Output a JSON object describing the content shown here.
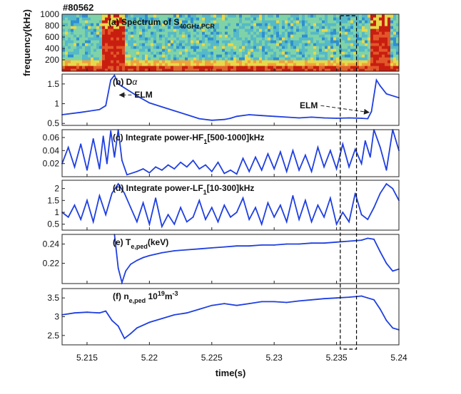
{
  "figure": {
    "shot_label": "#80562",
    "xlabel": "time(s)",
    "xlim": [
      5.213,
      5.24
    ],
    "x_ticks": [
      5.215,
      5.22,
      5.225,
      5.23,
      5.235,
      5.24
    ],
    "x_tick_labels": [
      "5.215",
      "5.22",
      "5.225",
      "5.23",
      "5.235",
      "5.24"
    ],
    "highlight_window": [
      5.2353,
      5.2366
    ],
    "line_color": "#1f3fe0",
    "dash_color": "#000000"
  },
  "chart_data": [
    {
      "type": "heatmap",
      "id": "a",
      "title_main": "(a) Spectrum of S",
      "title_sub": "40GHz,PCR",
      "ylabel": "frequency(kHz)",
      "ylim": [
        0,
        1000
      ],
      "y_ticks": [
        200,
        400,
        600,
        800,
        1000
      ],
      "y_tick_labels": [
        "200",
        "400",
        "600",
        "800",
        "1000"
      ],
      "colors": {
        "low": "#2f8fd0",
        "mid": "#7fd3a8",
        "high": "#e8d84a",
        "peak": "#c81e10"
      },
      "bursts": [
        {
          "x_start": 5.2162,
          "x_end": 5.218,
          "f_max": 1000
        },
        {
          "x_start": 5.2378,
          "x_end": 5.2392,
          "f_max": 1000
        }
      ]
    },
    {
      "type": "line",
      "id": "b",
      "title_main": "(b) D",
      "title_greek": "α",
      "ylim": [
        0.45,
        1.75
      ],
      "y_ticks": [
        0.5,
        1,
        1.5
      ],
      "y_tick_labels": [
        "0.5",
        "1",
        "1.5"
      ],
      "annotations": [
        {
          "text": "ELM",
          "x": 5.2188,
          "y": 1.15,
          "arrow_to_x": 5.2176,
          "arrow_to_y": 1.22
        },
        {
          "text": "ELM",
          "x": 5.2335,
          "y": 0.88,
          "arrow_to_x": 5.2376,
          "arrow_to_y": 0.78
        }
      ],
      "series": [
        {
          "x": [
            5.213,
            5.2145,
            5.216,
            5.2165,
            5.2169,
            5.2172,
            5.2175,
            5.218,
            5.2185,
            5.219,
            5.22,
            5.221,
            5.222,
            5.223,
            5.224,
            5.225,
            5.226,
            5.2265,
            5.227,
            5.228,
            5.229,
            5.23,
            5.231,
            5.232,
            5.233,
            5.234,
            5.235,
            5.236,
            5.237,
            5.2375,
            5.2378,
            5.2382,
            5.2385,
            5.239,
            5.24
          ],
          "values": [
            0.72,
            0.78,
            0.85,
            0.95,
            1.6,
            1.72,
            1.5,
            1.4,
            1.3,
            1.2,
            1.02,
            0.92,
            0.82,
            0.72,
            0.62,
            0.58,
            0.6,
            0.63,
            0.68,
            0.72,
            0.7,
            0.68,
            0.66,
            0.64,
            0.66,
            0.64,
            0.63,
            0.64,
            0.63,
            0.62,
            0.8,
            1.6,
            1.45,
            1.25,
            1.15
          ]
        }
      ]
    },
    {
      "type": "line",
      "id": "c",
      "title_main": "(c) Integrate power-HF",
      "title_sub": "1",
      "title_rest": "[500-1000]kHz",
      "ylim": [
        0,
        0.072
      ],
      "y_ticks": [
        0.02,
        0.04,
        0.06
      ],
      "y_tick_labels": [
        "0.02",
        "0.04",
        "0.06"
      ],
      "series": [
        {
          "x": [
            5.213,
            5.2135,
            5.214,
            5.2145,
            5.215,
            5.2155,
            5.216,
            5.2163,
            5.2166,
            5.2169,
            5.2172,
            5.2175,
            5.2178,
            5.2182,
            5.219,
            5.2195,
            5.22,
            5.2205,
            5.221,
            5.2215,
            5.222,
            5.2225,
            5.223,
            5.2235,
            5.224,
            5.2245,
            5.225,
            5.2255,
            5.226,
            5.2265,
            5.227,
            5.2275,
            5.228,
            5.2285,
            5.229,
            5.2295,
            5.23,
            5.2305,
            5.231,
            5.2315,
            5.232,
            5.2325,
            5.233,
            5.2335,
            5.234,
            5.2345,
            5.235,
            5.2355,
            5.236,
            5.2365,
            5.237,
            5.2373,
            5.2377,
            5.238,
            5.2385,
            5.239,
            5.2395,
            5.24
          ],
          "values": [
            0.02,
            0.045,
            0.015,
            0.05,
            0.01,
            0.058,
            0.012,
            0.062,
            0.02,
            0.07,
            0.03,
            0.072,
            0.025,
            0.003,
            0.008,
            0.012,
            0.006,
            0.015,
            0.01,
            0.018,
            0.012,
            0.022,
            0.015,
            0.025,
            0.012,
            0.018,
            0.008,
            0.022,
            0.005,
            0.01,
            0.004,
            0.028,
            0.008,
            0.03,
            0.01,
            0.035,
            0.012,
            0.038,
            0.008,
            0.04,
            0.01,
            0.033,
            0.008,
            0.045,
            0.015,
            0.04,
            0.012,
            0.05,
            0.015,
            0.042,
            0.02,
            0.055,
            0.03,
            0.072,
            0.045,
            0.01,
            0.072,
            0.04
          ]
        }
      ]
    },
    {
      "type": "line",
      "id": "d",
      "title_main": "(d) Integrate power-LF",
      "title_sub": "1",
      "title_rest": "[10-300]kHz",
      "ylim": [
        0.25,
        2.35
      ],
      "y_ticks": [
        0.5,
        1,
        1.5,
        2
      ],
      "y_tick_labels": [
        "0.5",
        "1",
        "1.5",
        "2"
      ],
      "series": [
        {
          "x": [
            5.213,
            5.2135,
            5.214,
            5.2145,
            5.215,
            5.2155,
            5.216,
            5.2165,
            5.217,
            5.2175,
            5.218,
            5.2185,
            5.219,
            5.2195,
            5.22,
            5.2205,
            5.221,
            5.2215,
            5.222,
            5.2225,
            5.223,
            5.2235,
            5.224,
            5.2245,
            5.225,
            5.2255,
            5.226,
            5.2265,
            5.227,
            5.2275,
            5.228,
            5.2285,
            5.229,
            5.2295,
            5.23,
            5.2305,
            5.231,
            5.2315,
            5.232,
            5.2325,
            5.233,
            5.2335,
            5.234,
            5.2345,
            5.235,
            5.2355,
            5.236,
            5.2365,
            5.237,
            5.2375,
            5.238,
            5.2385,
            5.239,
            5.2395,
            5.24
          ],
          "values": [
            1.0,
            0.8,
            1.3,
            0.7,
            1.5,
            0.6,
            1.7,
            0.9,
            1.8,
            2.2,
            1.8,
            1.2,
            0.6,
            1.4,
            0.5,
            1.6,
            0.4,
            0.9,
            0.5,
            1.2,
            0.6,
            0.8,
            1.5,
            0.7,
            1.2,
            0.6,
            1.3,
            0.8,
            1.0,
            1.6,
            0.7,
            1.2,
            0.5,
            1.4,
            0.8,
            1.3,
            0.6,
            1.7,
            0.7,
            1.5,
            0.6,
            1.3,
            0.8,
            1.6,
            0.5,
            1.0,
            0.6,
            1.8,
            0.9,
            0.7,
            1.2,
            1.8,
            2.2,
            2.0,
            1.5
          ]
        }
      ]
    },
    {
      "type": "line",
      "id": "e",
      "title_main": "(e) T",
      "title_sub": "e,ped",
      "title_rest": "(keV)",
      "ylim": [
        0.199,
        0.25
      ],
      "y_ticks": [
        0.22,
        0.24
      ],
      "y_tick_labels": [
        "0.22",
        "0.24"
      ],
      "series": [
        {
          "x": [
            5.2172,
            5.2175,
            5.2178,
            5.2181,
            5.2185,
            5.219,
            5.2195,
            5.22,
            5.221,
            5.222,
            5.223,
            5.224,
            5.225,
            5.226,
            5.227,
            5.228,
            5.229,
            5.23,
            5.231,
            5.232,
            5.233,
            5.234,
            5.235,
            5.236,
            5.237,
            5.2375,
            5.238,
            5.2385,
            5.239,
            5.2395,
            5.24
          ],
          "values": [
            0.25,
            0.215,
            0.2,
            0.212,
            0.219,
            0.223,
            0.226,
            0.228,
            0.231,
            0.233,
            0.234,
            0.235,
            0.236,
            0.237,
            0.238,
            0.238,
            0.239,
            0.239,
            0.24,
            0.24,
            0.241,
            0.241,
            0.242,
            0.243,
            0.244,
            0.246,
            0.245,
            0.232,
            0.22,
            0.212,
            0.214
          ]
        }
      ]
    },
    {
      "type": "line",
      "id": "f",
      "title_main": "(f) n",
      "title_sub": "e,ped",
      "title_rest": " 10",
      "title_sup1": "19",
      "title_rest2": "m",
      "title_sup2": "-3",
      "ylim": [
        2.25,
        3.75
      ],
      "y_ticks": [
        2.5,
        3,
        3.5
      ],
      "y_tick_labels": [
        "2.5",
        "3",
        "3.5"
      ],
      "series": [
        {
          "x": [
            5.213,
            5.214,
            5.215,
            5.216,
            5.2165,
            5.217,
            5.2175,
            5.218,
            5.2185,
            5.219,
            5.22,
            5.221,
            5.222,
            5.223,
            5.224,
            5.225,
            5.226,
            5.227,
            5.228,
            5.229,
            5.23,
            5.231,
            5.232,
            5.233,
            5.234,
            5.235,
            5.236,
            5.237,
            5.2375,
            5.238,
            5.2385,
            5.239,
            5.2395,
            5.24
          ],
          "values": [
            3.05,
            3.1,
            3.12,
            3.1,
            3.15,
            2.9,
            2.75,
            2.42,
            2.55,
            2.7,
            2.85,
            2.95,
            3.05,
            3.1,
            3.2,
            3.3,
            3.35,
            3.3,
            3.35,
            3.4,
            3.4,
            3.38,
            3.42,
            3.45,
            3.48,
            3.5,
            3.52,
            3.55,
            3.5,
            3.45,
            3.2,
            2.9,
            2.7,
            2.65
          ]
        }
      ]
    }
  ]
}
